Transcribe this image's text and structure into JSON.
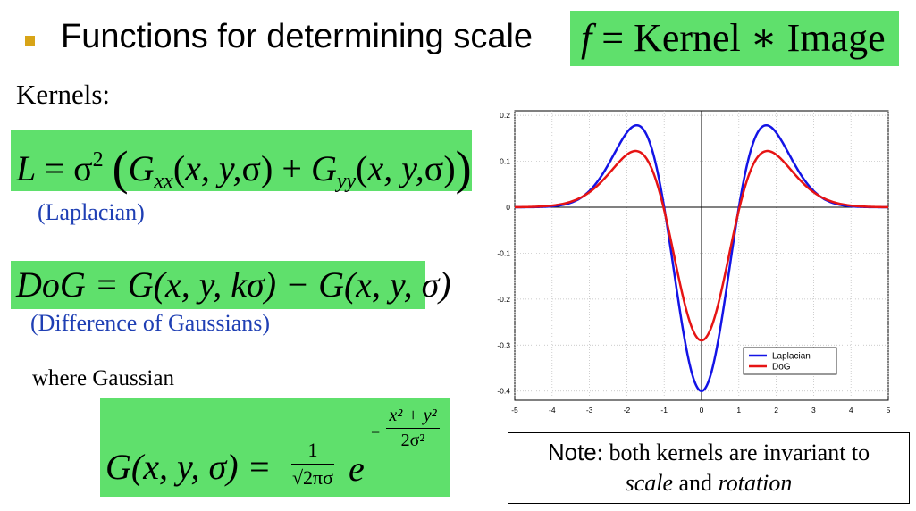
{
  "slide": {
    "title": "Functions for determining scale",
    "formula_f": {
      "lhs": "f",
      "eq": "=",
      "rhs": "Kernel ∗ Image"
    },
    "kernels_heading": "Kernels:",
    "laplacian": {
      "caption": "(Laplacian)"
    },
    "dog": {
      "formula": "DoG = G(x, y, kσ) − G(x, y, σ)",
      "caption": "(Difference of Gaussians)"
    },
    "gaussian_intro": "where Gaussian",
    "gaussian": {
      "lhs": "G(x, y, σ) =",
      "frac_num": "1",
      "frac_den": "√2πσ",
      "e": "e",
      "exp_sign": "−",
      "exp_num": "x² + y²",
      "exp_den": "2σ²"
    },
    "note": {
      "bold": "Note",
      "text1": ": both kernels are invariant to",
      "scale": "scale",
      "and": " and ",
      "rotation": "rotation"
    }
  },
  "chart_data": {
    "type": "line",
    "x_range": [
      -5,
      5
    ],
    "ylim": [
      -0.42,
      0.21
    ],
    "xticks": [
      "-5",
      "-4",
      "-3",
      "-2",
      "-1",
      "0",
      "1",
      "2",
      "3",
      "4",
      "5"
    ],
    "yticks": [
      "0.2",
      "0.1",
      "0",
      "-0.1",
      "-0.2",
      "-0.3",
      "-0.4"
    ],
    "grid": true,
    "legend_position": "bottom-right",
    "series": [
      {
        "name": "Laplacian",
        "color": "#1414e6",
        "formula": "(x^2-1)*exp(-x^2/2)*0.4",
        "key_points": [
          [
            -5,
            0.0
          ],
          [
            -3,
            0.04
          ],
          [
            -1.7,
            0.178
          ],
          [
            -1,
            0.0
          ],
          [
            0,
            -0.4
          ],
          [
            1,
            0.0
          ],
          [
            1.7,
            0.178
          ],
          [
            3,
            0.04
          ],
          [
            5,
            0.0
          ]
        ]
      },
      {
        "name": "DoG",
        "color": "#e61414",
        "key_points": [
          [
            -5,
            0.002
          ],
          [
            -3,
            0.07
          ],
          [
            -1.9,
            0.137
          ],
          [
            -1,
            0.02
          ],
          [
            0,
            -0.316
          ],
          [
            1,
            0.02
          ],
          [
            1.9,
            0.137
          ],
          [
            3,
            0.07
          ],
          [
            5,
            0.002
          ]
        ]
      }
    ]
  }
}
